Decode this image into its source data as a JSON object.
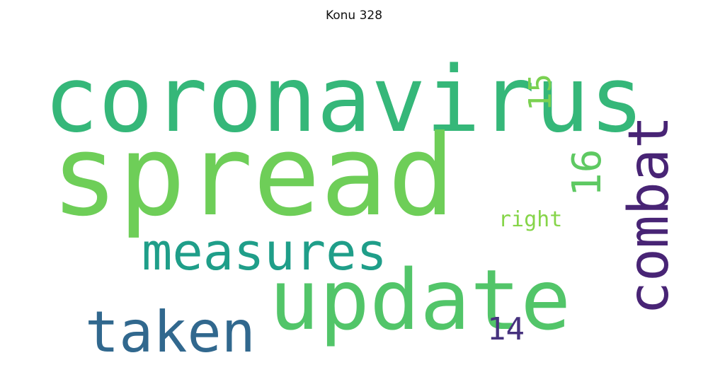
{
  "title": "Konu 328",
  "words": {
    "coronavirus": {
      "text": "coronavirus",
      "color": "#35b779"
    },
    "spread": {
      "text": "spread",
      "color": "#6ece58"
    },
    "update": {
      "text": "update",
      "color": "#52c569"
    },
    "measures": {
      "text": "measures",
      "color": "#1f9e89"
    },
    "taken": {
      "text": "taken",
      "color": "#31688e"
    },
    "combat": {
      "text": "combat",
      "color": "#482475"
    },
    "n16": {
      "text": "16",
      "color": "#5ec962"
    },
    "n15": {
      "text": "15",
      "color": "#7ad151"
    },
    "right": {
      "text": "right",
      "color": "#86d549"
    },
    "n14": {
      "text": "14",
      "color": "#46327e"
    }
  }
}
